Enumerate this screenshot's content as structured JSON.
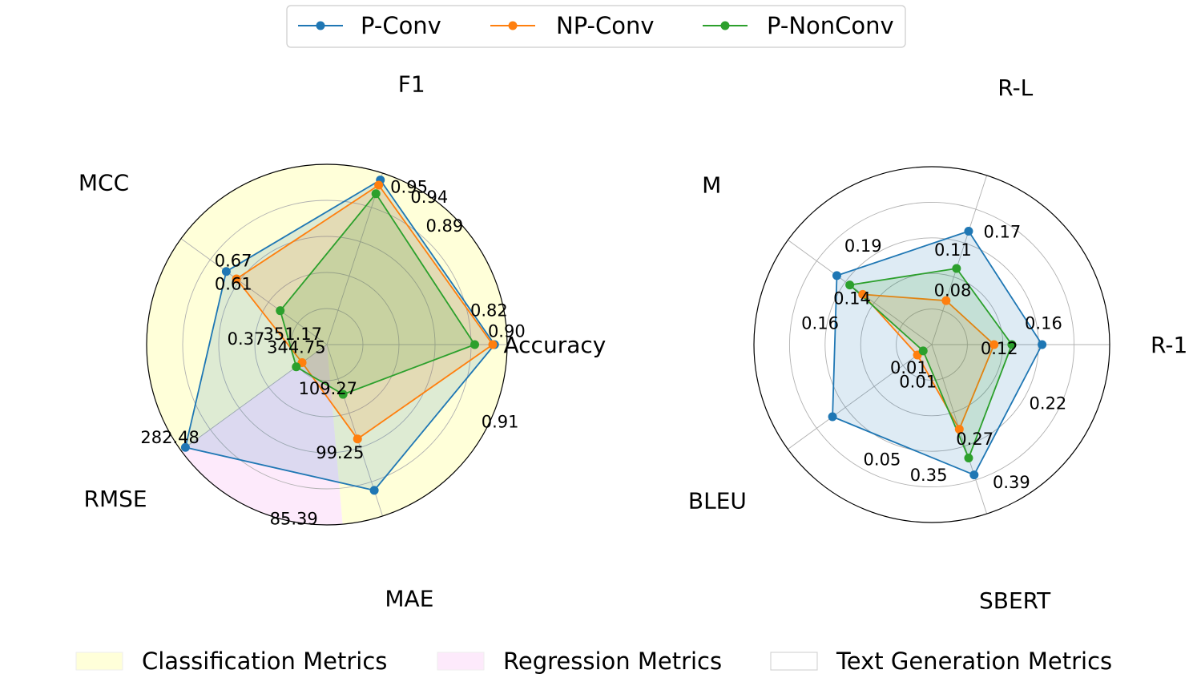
{
  "legend": {
    "series": [
      {
        "name": "P-Conv",
        "color": "#1f77b4"
      },
      {
        "name": "NP-Conv",
        "color": "#ff7f0e"
      },
      {
        "name": "P-NonConv",
        "color": "#2ca02c"
      }
    ],
    "groups": [
      {
        "name": "Classification Metrics",
        "color": "#ffffd9"
      },
      {
        "name": "Regression Metrics",
        "color": "#fdeafb"
      },
      {
        "name": "Text Generation Metrics",
        "color": "#ffffff"
      }
    ]
  },
  "chart_data": [
    {
      "type": "radar",
      "axes": [
        "Accuracy",
        "F1",
        "MCC",
        "RMSE",
        "MAE"
      ],
      "series": [
        {
          "name": "P-Conv",
          "r": [
            0.93,
            0.96,
            0.69,
            0.97,
            0.85
          ]
        },
        {
          "name": "NP-Conv",
          "r": [
            0.92,
            0.93,
            0.62,
            0.17,
            0.55
          ]
        },
        {
          "name": "P-NonConv",
          "r": [
            0.82,
            0.88,
            0.32,
            0.21,
            0.29
          ]
        }
      ],
      "value_labels": [
        {
          "text": "0.90",
          "axis": 0,
          "r": 1.0,
          "dr": 0.08
        },
        {
          "text": "0.82",
          "axis": 0,
          "r": 0.92,
          "dr": 0.22
        },
        {
          "text": "0.91",
          "axis": 0,
          "r": 1.05,
          "dr": -0.43
        },
        {
          "text": "0.89",
          "axis": 1,
          "r": 0.93,
          "dr": -0.48
        },
        {
          "text": "0.94",
          "axis": 1,
          "r": 1.0,
          "dr": -0.3
        },
        {
          "text": "0.95",
          "axis": 1,
          "r": 0.99,
          "dr": -0.17
        },
        {
          "text": "0.67",
          "axis": 2,
          "r": 0.7,
          "dr": -0.11
        },
        {
          "text": "0.61",
          "axis": 2,
          "r": 0.62,
          "dr": 0.05
        },
        {
          "text": "0.37",
          "axis": 2,
          "r": 0.45,
          "dr": 0.57
        },
        {
          "text": "351.17",
          "axis": 3,
          "r": 0.2,
          "dr": -0.98
        },
        {
          "text": "344.75",
          "axis": 3,
          "r": 0.17,
          "dr": -0.58
        },
        {
          "text": "282.48",
          "axis": 3,
          "r": 1.01,
          "dr": -0.1
        },
        {
          "text": "109.27",
          "axis": 4,
          "r": 0.24,
          "dr": -0.3
        },
        {
          "text": "99.25",
          "axis": 4,
          "r": 0.6,
          "dr": -0.2
        },
        {
          "text": "85.39",
          "axis": 4,
          "r": 0.98,
          "dr": -0.52
        }
      ]
    },
    {
      "type": "radar",
      "axes": [
        "R-1",
        "R-L",
        "M",
        "BLEU",
        "SBERT"
      ],
      "series": [
        {
          "name": "P-Conv",
          "r": [
            0.62,
            0.67,
            0.66,
            0.69,
            0.77
          ]
        },
        {
          "name": "NP-Conv",
          "r": [
            0.35,
            0.26,
            0.48,
            0.1,
            0.5
          ]
        },
        {
          "name": "P-NonConv",
          "r": [
            0.45,
            0.45,
            0.57,
            0.06,
            0.67
          ]
        }
      ],
      "value_labels": [
        {
          "text": "0.22",
          "axis": 0,
          "r": 0.73,
          "dr": -0.48
        },
        {
          "text": "0.16",
          "axis": 0,
          "r": 0.64,
          "dr": 0.2
        },
        {
          "text": "0.12",
          "axis": 0,
          "r": 0.38,
          "dr": -0.05
        },
        {
          "text": "0.17",
          "axis": 1,
          "r": 0.75,
          "dr": -0.25
        },
        {
          "text": "0.11",
          "axis": 1,
          "r": 0.55,
          "dr": 0.1
        },
        {
          "text": "0.08",
          "axis": 1,
          "r": 0.33,
          "dr": -0.05
        },
        {
          "text": "0.19",
          "axis": 2,
          "r": 0.68,
          "dr": -0.35
        },
        {
          "text": "0.14",
          "axis": 2,
          "r": 0.52,
          "dr": 0.1
        },
        {
          "text": "0.16",
          "axis": 2,
          "r": 0.64,
          "dr": 0.45
        },
        {
          "text": "0.05",
          "axis": 3,
          "r": 0.7,
          "dr": 0.55
        },
        {
          "text": "0.01",
          "axis": 3,
          "r": 0.22,
          "dr": 0.6
        },
        {
          "text": "0.01",
          "axis": 3,
          "r": 0.18,
          "dr": 0.15
        },
        {
          "text": "0.27",
          "axis": 4,
          "r": 0.58,
          "dr": 0.12
        },
        {
          "text": "0.35",
          "axis": 4,
          "r": 0.73,
          "dr": -0.35
        },
        {
          "text": "0.39",
          "axis": 4,
          "r": 0.89,
          "dr": 0.22
        }
      ]
    }
  ]
}
